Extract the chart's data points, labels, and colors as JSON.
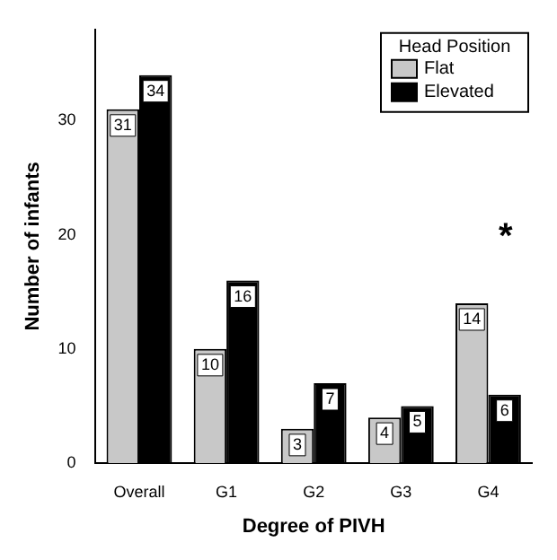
{
  "chart_data": {
    "type": "bar",
    "xlabel": "Degree of PIVH",
    "ylabel": "Number of infants",
    "legend_title": "Head Position",
    "categories": [
      "Overall",
      "G1",
      "G2",
      "G3",
      "G4"
    ],
    "series": [
      {
        "name": "Flat",
        "color": "#c8c8c8",
        "values": [
          31,
          10,
          3,
          4,
          14
        ]
      },
      {
        "name": "Elevated",
        "color": "#000000",
        "values": [
          34,
          16,
          7,
          5,
          6
        ]
      }
    ],
    "ylim": [
      0,
      38
    ],
    "yticks": [
      0,
      10,
      20,
      30
    ],
    "grid": false,
    "legend": "top right",
    "data_labels": true,
    "annotations": [
      "*"
    ]
  }
}
